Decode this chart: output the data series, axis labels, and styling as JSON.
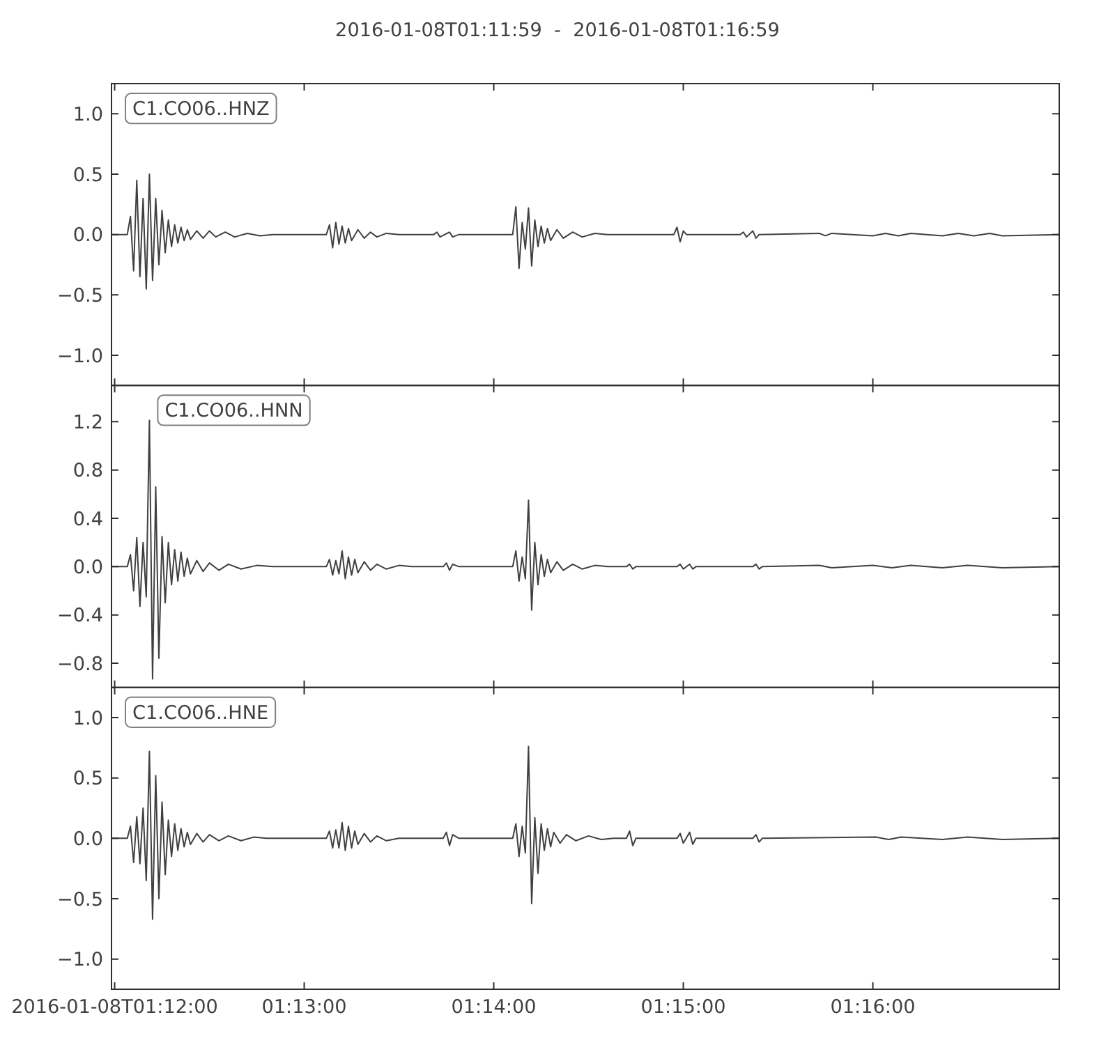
{
  "chart_data": [
    {
      "type": "line",
      "title": "2016-01-08T01:11:59  -  2016-01-08T01:16:59",
      "legend": "top left",
      "tick_labels": "y",
      "xlim": [
        "2016-01-08T01:11:59",
        "2016-01-08T01:16:59"
      ],
      "xticks": [
        {
          "value": "2016-01-08T01:12:00",
          "label": null
        },
        {
          "value": "2016-01-08T01:13:00",
          "label": null
        },
        {
          "value": "2016-01-08T01:14:00",
          "label": null
        },
        {
          "value": "2016-01-08T01:15:00",
          "label": null
        },
        {
          "value": "2016-01-08T01:16:00",
          "label": null
        }
      ],
      "ylim": [
        -1.25,
        1.25
      ],
      "yticks": [
        {
          "value": -1,
          "label": "−1.0"
        },
        {
          "value": -0.5,
          "label": "−0.5"
        },
        {
          "value": 0,
          "label": "0.0"
        },
        0.5,
        {
          "value": 1,
          "label": "1.0"
        }
      ],
      "x": [
        "2016-01-08T01:11:59",
        "2016-01-08T01:12:04",
        "2016-01-08T01:12:05",
        "2016-01-08T01:12:06",
        "2016-01-08T01:12:07",
        "2016-01-08T01:12:08",
        "2016-01-08T01:12:09",
        "2016-01-08T01:12:10",
        "2016-01-08T01:12:11",
        "2016-01-08T01:12:12",
        "2016-01-08T01:12:13",
        "2016-01-08T01:12:14",
        "2016-01-08T01:12:15",
        "2016-01-08T01:12:16",
        "2016-01-08T01:12:17",
        "2016-01-08T01:12:18",
        "2016-01-08T01:12:19",
        "2016-01-08T01:12:20",
        "2016-01-08T01:12:21",
        "2016-01-08T01:12:22",
        "2016-01-08T01:12:23",
        "2016-01-08T01:12:24",
        "2016-01-08T01:12:26",
        "2016-01-08T01:12:28",
        "2016-01-08T01:12:30",
        "2016-01-08T01:12:32",
        "2016-01-08T01:12:35",
        "2016-01-08T01:12:38",
        "2016-01-08T01:12:42",
        "2016-01-08T01:12:46",
        "2016-01-08T01:12:50",
        "2016-01-08T01:13:07",
        "2016-01-08T01:13:08",
        "2016-01-08T01:13:09",
        "2016-01-08T01:13:10",
        "2016-01-08T01:13:11",
        "2016-01-08T01:13:12",
        "2016-01-08T01:13:13",
        "2016-01-08T01:13:14",
        "2016-01-08T01:13:15",
        "2016-01-08T01:13:17",
        "2016-01-08T01:13:19",
        "2016-01-08T01:13:21",
        "2016-01-08T01:13:23",
        "2016-01-08T01:13:26",
        "2016-01-08T01:13:30",
        "2016-01-08T01:13:41",
        "2016-01-08T01:13:42",
        "2016-01-08T01:13:43",
        "2016-01-08T01:13:46",
        "2016-01-08T01:13:47",
        "2016-01-08T01:13:49",
        "2016-01-08T01:14:06",
        "2016-01-08T01:14:07",
        "2016-01-08T01:14:08",
        "2016-01-08T01:14:09",
        "2016-01-08T01:14:10",
        "2016-01-08T01:14:11",
        "2016-01-08T01:14:12",
        "2016-01-08T01:14:13",
        "2016-01-08T01:14:14",
        "2016-01-08T01:14:15",
        "2016-01-08T01:14:16",
        "2016-01-08T01:14:17",
        "2016-01-08T01:14:18",
        "2016-01-08T01:14:20",
        "2016-01-08T01:14:22",
        "2016-01-08T01:14:25",
        "2016-01-08T01:14:28",
        "2016-01-08T01:14:32",
        "2016-01-08T01:14:36",
        "2016-01-08T01:14:57",
        "2016-01-08T01:14:58",
        "2016-01-08T01:14:59",
        "2016-01-08T01:15:00",
        "2016-01-08T01:15:01",
        "2016-01-08T01:15:18",
        "2016-01-08T01:15:19",
        "2016-01-08T01:15:20",
        "2016-01-08T01:15:22",
        "2016-01-08T01:15:23",
        "2016-01-08T01:15:24",
        "2016-01-08T01:15:43",
        "2016-01-08T01:15:45",
        "2016-01-08T01:15:47",
        "2016-01-08T01:16:00",
        "2016-01-08T01:16:04",
        "2016-01-08T01:16:08",
        "2016-01-08T01:16:12",
        "2016-01-08T01:16:22",
        "2016-01-08T01:16:27",
        "2016-01-08T01:16:32",
        "2016-01-08T01:16:37",
        "2016-01-08T01:16:41",
        "2016-01-08T01:16:59"
      ],
      "series": [
        {
          "name": "C1.CO06..HNZ",
          "color": "#404040",
          "values": [
            0,
            0,
            0.15,
            -0.3,
            0.45,
            -0.35,
            0.3,
            -0.45,
            0.5,
            -0.38,
            0.3,
            -0.25,
            0.2,
            -0.15,
            0.12,
            -0.1,
            0.08,
            -0.07,
            0.06,
            -0.05,
            0.04,
            -0.04,
            0.03,
            -0.03,
            0.03,
            -0.02,
            0.02,
            -0.02,
            0.01,
            -0.01,
            0,
            0,
            0.08,
            -0.11,
            0.1,
            -0.08,
            0.07,
            -0.07,
            0.05,
            -0.05,
            0.04,
            -0.03,
            0.02,
            -0.02,
            0.01,
            0,
            0,
            0.02,
            -0.02,
            0.02,
            -0.02,
            0,
            0,
            0.23,
            -0.28,
            0.1,
            -0.12,
            0.22,
            -0.26,
            0.12,
            -0.1,
            0.07,
            -0.07,
            0.05,
            -0.05,
            0.04,
            -0.03,
            0.02,
            -0.02,
            0.01,
            0,
            0,
            0.06,
            -0.06,
            0.03,
            0,
            0,
            0.02,
            -0.02,
            0.03,
            -0.03,
            0,
            0.01,
            -0.01,
            0.01,
            -0.01,
            0.01,
            -0.01,
            0.01,
            -0.01,
            0.01,
            -0.01,
            0.01,
            -0.01,
            0
          ]
        }
      ]
    },
    {
      "type": "line",
      "legend": "top left",
      "tick_labels": "y",
      "xlim": [
        "2016-01-08T01:11:59",
        "2016-01-08T01:16:59"
      ],
      "xticks": [
        {
          "value": "2016-01-08T01:12:00",
          "label": null
        },
        {
          "value": "2016-01-08T01:13:00",
          "label": null
        },
        {
          "value": "2016-01-08T01:14:00",
          "label": null
        },
        {
          "value": "2016-01-08T01:15:00",
          "label": null
        },
        {
          "value": "2016-01-08T01:16:00",
          "label": null
        }
      ],
      "ylim": [
        -1.0,
        1.5
      ],
      "yticks": [
        {
          "value": -0.8,
          "label": "−0.8"
        },
        {
          "value": -0.4,
          "label": "−0.4"
        },
        {
          "value": 0,
          "label": "0.0"
        },
        0.4,
        0.8,
        1.2
      ],
      "x": [
        "2016-01-08T01:11:59",
        "2016-01-08T01:12:04",
        "2016-01-08T01:12:05",
        "2016-01-08T01:12:06",
        "2016-01-08T01:12:07",
        "2016-01-08T01:12:08",
        "2016-01-08T01:12:09",
        "2016-01-08T01:12:10",
        "2016-01-08T01:12:11",
        "2016-01-08T01:12:12",
        "2016-01-08T01:12:13",
        "2016-01-08T01:12:14",
        "2016-01-08T01:12:15",
        "2016-01-08T01:12:16",
        "2016-01-08T01:12:17",
        "2016-01-08T01:12:18",
        "2016-01-08T01:12:19",
        "2016-01-08T01:12:20",
        "2016-01-08T01:12:21",
        "2016-01-08T01:12:22",
        "2016-01-08T01:12:23",
        "2016-01-08T01:12:24",
        "2016-01-08T01:12:26",
        "2016-01-08T01:12:28",
        "2016-01-08T01:12:30",
        "2016-01-08T01:12:33",
        "2016-01-08T01:12:36",
        "2016-01-08T01:12:40",
        "2016-01-08T01:12:45",
        "2016-01-08T01:12:50",
        "2016-01-08T01:13:07",
        "2016-01-08T01:13:08",
        "2016-01-08T01:13:09",
        "2016-01-08T01:13:10",
        "2016-01-08T01:13:11",
        "2016-01-08T01:13:12",
        "2016-01-08T01:13:13",
        "2016-01-08T01:13:14",
        "2016-01-08T01:13:15",
        "2016-01-08T01:13:16",
        "2016-01-08T01:13:17",
        "2016-01-08T01:13:19",
        "2016-01-08T01:13:21",
        "2016-01-08T01:13:23",
        "2016-01-08T01:13:26",
        "2016-01-08T01:13:30",
        "2016-01-08T01:13:34",
        "2016-01-08T01:13:44",
        "2016-01-08T01:13:45",
        "2016-01-08T01:13:46",
        "2016-01-08T01:13:47",
        "2016-01-08T01:13:49",
        "2016-01-08T01:14:06",
        "2016-01-08T01:14:07",
        "2016-01-08T01:14:08",
        "2016-01-08T01:14:09",
        "2016-01-08T01:14:10",
        "2016-01-08T01:14:11",
        "2016-01-08T01:14:12",
        "2016-01-08T01:14:13",
        "2016-01-08T01:14:14",
        "2016-01-08T01:14:15",
        "2016-01-08T01:14:16",
        "2016-01-08T01:14:17",
        "2016-01-08T01:14:18",
        "2016-01-08T01:14:20",
        "2016-01-08T01:14:22",
        "2016-01-08T01:14:25",
        "2016-01-08T01:14:28",
        "2016-01-08T01:14:32",
        "2016-01-08T01:14:36",
        "2016-01-08T01:14:42",
        "2016-01-08T01:14:43",
        "2016-01-08T01:14:44",
        "2016-01-08T01:14:45",
        "2016-01-08T01:14:58",
        "2016-01-08T01:14:59",
        "2016-01-08T01:15:00",
        "2016-01-08T01:15:02",
        "2016-01-08T01:15:03",
        "2016-01-08T01:15:04",
        "2016-01-08T01:15:22",
        "2016-01-08T01:15:23",
        "2016-01-08T01:15:24",
        "2016-01-08T01:15:25",
        "2016-01-08T01:15:43",
        "2016-01-08T01:15:47",
        "2016-01-08T01:16:00",
        "2016-01-08T01:16:06",
        "2016-01-08T01:16:12",
        "2016-01-08T01:16:22",
        "2016-01-08T01:16:30",
        "2016-01-08T01:16:41",
        "2016-01-08T01:16:59"
      ],
      "series": [
        {
          "name": "C1.CO06..HNN",
          "color": "#404040",
          "values": [
            0,
            0,
            0.1,
            -0.2,
            0.24,
            -0.33,
            0.2,
            -0.25,
            1.21,
            -0.93,
            0.66,
            -0.76,
            0.25,
            -0.3,
            0.2,
            -0.15,
            0.14,
            -0.12,
            0.12,
            -0.08,
            0.07,
            -0.06,
            0.05,
            -0.04,
            0.03,
            -0.03,
            0.02,
            -0.02,
            0.01,
            0,
            0,
            0.06,
            -0.07,
            0.05,
            -0.06,
            0.13,
            -0.1,
            0.08,
            -0.07,
            0.06,
            -0.05,
            0.04,
            -0.03,
            0.02,
            -0.02,
            0.01,
            0,
            0,
            0.03,
            -0.03,
            0.02,
            0,
            0,
            0.13,
            -0.12,
            0.08,
            -0.1,
            0.55,
            -0.36,
            0.2,
            -0.15,
            0.1,
            -0.08,
            0.06,
            -0.05,
            0.04,
            -0.03,
            0.02,
            -0.02,
            0.01,
            0,
            0,
            0.02,
            -0.02,
            0,
            0,
            0.02,
            -0.02,
            0.02,
            -0.02,
            0,
            0,
            0.02,
            -0.02,
            0,
            0.01,
            -0.01,
            0.01,
            -0.01,
            0.01,
            -0.01,
            0.01,
            -0.01,
            0
          ]
        }
      ]
    },
    {
      "type": "line",
      "legend": "top left",
      "xlim": [
        "2016-01-08T01:11:59",
        "2016-01-08T01:16:59"
      ],
      "xticks": [
        {
          "value": "2016-01-08T01:12:00",
          "label": "2016-01-08T01:12:00"
        },
        {
          "value": "2016-01-08T01:13:00",
          "label": "01:13:00"
        },
        {
          "value": "2016-01-08T01:14:00",
          "label": "01:14:00"
        },
        {
          "value": "2016-01-08T01:15:00",
          "label": "01:15:00"
        },
        {
          "value": "2016-01-08T01:16:00",
          "label": "01:16:00"
        }
      ],
      "ylim": [
        -1.25,
        1.25
      ],
      "yticks": [
        {
          "value": -1,
          "label": "−1.0"
        },
        {
          "value": -0.5,
          "label": "−0.5"
        },
        {
          "value": 0,
          "label": "0.0"
        },
        0.5,
        {
          "value": 1,
          "label": "1.0"
        }
      ],
      "x": [
        "2016-01-08T01:11:59",
        "2016-01-08T01:12:04",
        "2016-01-08T01:12:05",
        "2016-01-08T01:12:06",
        "2016-01-08T01:12:07",
        "2016-01-08T01:12:08",
        "2016-01-08T01:12:09",
        "2016-01-08T01:12:10",
        "2016-01-08T01:12:11",
        "2016-01-08T01:12:12",
        "2016-01-08T01:12:13",
        "2016-01-08T01:12:14",
        "2016-01-08T01:12:15",
        "2016-01-08T01:12:16",
        "2016-01-08T01:12:17",
        "2016-01-08T01:12:18",
        "2016-01-08T01:12:19",
        "2016-01-08T01:12:20",
        "2016-01-08T01:12:21",
        "2016-01-08T01:12:22",
        "2016-01-08T01:12:23",
        "2016-01-08T01:12:24",
        "2016-01-08T01:12:26",
        "2016-01-08T01:12:28",
        "2016-01-08T01:12:30",
        "2016-01-08T01:12:33",
        "2016-01-08T01:12:36",
        "2016-01-08T01:12:40",
        "2016-01-08T01:12:44",
        "2016-01-08T01:12:48",
        "2016-01-08T01:13:07",
        "2016-01-08T01:13:08",
        "2016-01-08T01:13:09",
        "2016-01-08T01:13:10",
        "2016-01-08T01:13:11",
        "2016-01-08T01:13:12",
        "2016-01-08T01:13:13",
        "2016-01-08T01:13:14",
        "2016-01-08T01:13:15",
        "2016-01-08T01:13:16",
        "2016-01-08T01:13:17",
        "2016-01-08T01:13:19",
        "2016-01-08T01:13:21",
        "2016-01-08T01:13:23",
        "2016-01-08T01:13:26",
        "2016-01-08T01:13:30",
        "2016-01-08T01:13:44",
        "2016-01-08T01:13:45",
        "2016-01-08T01:13:46",
        "2016-01-08T01:13:47",
        "2016-01-08T01:13:49",
        "2016-01-08T01:14:06",
        "2016-01-08T01:14:07",
        "2016-01-08T01:14:08",
        "2016-01-08T01:14:09",
        "2016-01-08T01:14:10",
        "2016-01-08T01:14:11",
        "2016-01-08T01:14:12",
        "2016-01-08T01:14:13",
        "2016-01-08T01:14:14",
        "2016-01-08T01:14:15",
        "2016-01-08T01:14:16",
        "2016-01-08T01:14:17",
        "2016-01-08T01:14:18",
        "2016-01-08T01:14:19",
        "2016-01-08T01:14:21",
        "2016-01-08T01:14:23",
        "2016-01-08T01:14:26",
        "2016-01-08T01:14:30",
        "2016-01-08T01:14:34",
        "2016-01-08T01:14:38",
        "2016-01-08T01:14:42",
        "2016-01-08T01:14:43",
        "2016-01-08T01:14:44",
        "2016-01-08T01:14:45",
        "2016-01-08T01:14:58",
        "2016-01-08T01:14:59",
        "2016-01-08T01:15:00",
        "2016-01-08T01:15:02",
        "2016-01-08T01:15:03",
        "2016-01-08T01:15:04",
        "2016-01-08T01:15:22",
        "2016-01-08T01:15:23",
        "2016-01-08T01:15:24",
        "2016-01-08T01:15:25",
        "2016-01-08T01:16:01",
        "2016-01-08T01:16:05",
        "2016-01-08T01:16:09",
        "2016-01-08T01:16:22",
        "2016-01-08T01:16:30",
        "2016-01-08T01:16:41",
        "2016-01-08T01:16:59"
      ],
      "series": [
        {
          "name": "C1.CO06..HNE",
          "color": "#404040",
          "values": [
            0,
            0,
            0.1,
            -0.2,
            0.18,
            -0.21,
            0.25,
            -0.35,
            0.72,
            -0.67,
            0.52,
            -0.5,
            0.3,
            -0.3,
            0.15,
            -0.15,
            0.12,
            -0.1,
            0.08,
            -0.07,
            0.05,
            -0.05,
            0.04,
            -0.03,
            0.03,
            -0.02,
            0.02,
            -0.02,
            0.01,
            0,
            0,
            0.06,
            -0.08,
            0.07,
            -0.08,
            0.13,
            -0.1,
            0.1,
            -0.08,
            0.06,
            -0.05,
            0.04,
            -0.03,
            0.02,
            -0.02,
            0,
            0,
            0.05,
            -0.06,
            0.03,
            0,
            0,
            0.12,
            -0.15,
            0.1,
            -0.12,
            0.76,
            -0.54,
            0.17,
            -0.29,
            0.12,
            -0.1,
            0.08,
            -0.07,
            0.05,
            -0.04,
            0.03,
            -0.02,
            0.02,
            -0.01,
            0,
            0,
            0.06,
            -0.06,
            0,
            0,
            0.04,
            -0.04,
            0.05,
            -0.05,
            0,
            0,
            0.03,
            -0.03,
            0,
            0.01,
            -0.01,
            0.01,
            -0.01,
            0.01,
            -0.01,
            0
          ]
        }
      ]
    }
  ]
}
